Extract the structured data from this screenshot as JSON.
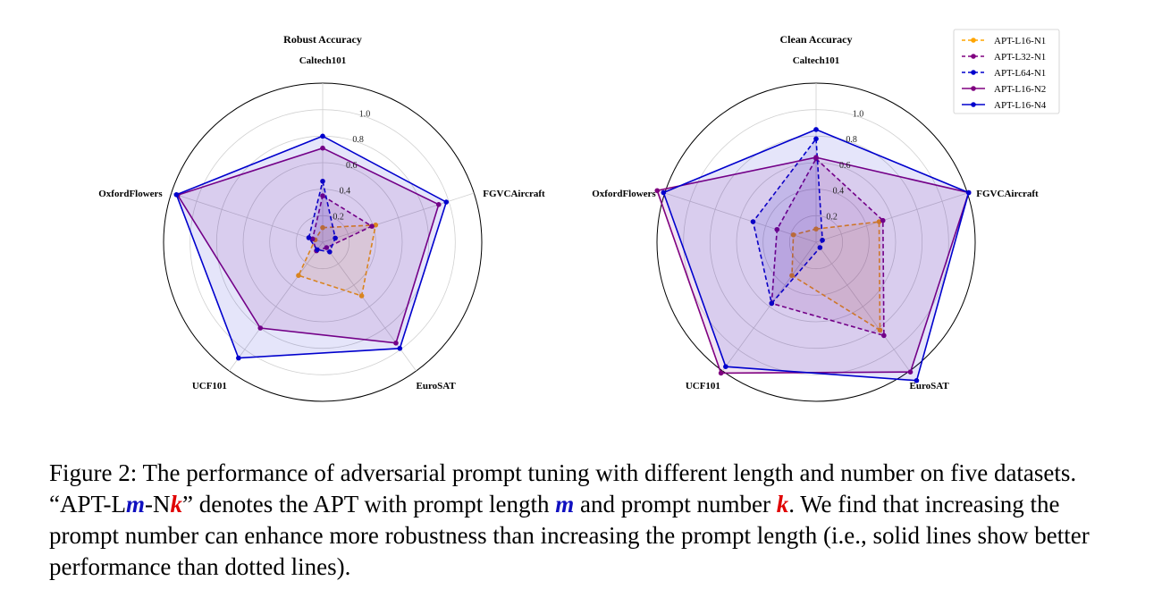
{
  "chart_data": [
    {
      "type": "radar",
      "title": "Robust Accuracy",
      "axes": [
        "Caltech101",
        "FGVCAircraft",
        "EuroSAT",
        "UCF101",
        "OxfordFlowers"
      ],
      "radial_ticks": [
        "0.2",
        "0.4",
        "0.6",
        "0.8",
        "1.0"
      ],
      "rlim": [
        0,
        1.2
      ],
      "series": [
        {
          "name": "APT-L16-N1",
          "values": [
            0.11,
            0.42,
            0.5,
            0.31,
            0.06
          ]
        },
        {
          "name": "APT-L32-N1",
          "values": [
            0.35,
            0.39,
            0.05,
            0.08,
            0.08
          ]
        },
        {
          "name": "APT-L64-N1",
          "values": [
            0.46,
            0.1,
            0.09,
            0.07,
            0.11
          ]
        },
        {
          "name": "APT-L16-N2",
          "values": [
            0.71,
            0.92,
            0.94,
            0.8,
            1.15
          ]
        },
        {
          "name": "APT-L16-N4",
          "values": [
            0.8,
            0.98,
            0.99,
            1.08,
            1.16
          ]
        }
      ]
    },
    {
      "type": "radar",
      "title": "Clean Accuracy",
      "axes": [
        "Caltech101",
        "FGVCAircraft",
        "EuroSAT",
        "UCF101",
        "OxfordFlowers"
      ],
      "radial_ticks": [
        "0.2",
        "0.4",
        "0.6",
        "0.8",
        "1.0"
      ],
      "rlim": [
        0,
        1.2
      ],
      "series": [
        {
          "name": "APT-L16-N1",
          "values": [
            0.1,
            0.5,
            0.82,
            0.31,
            0.18
          ]
        },
        {
          "name": "APT-L32-N1",
          "values": [
            0.63,
            0.53,
            0.87,
            0.57,
            0.31
          ]
        },
        {
          "name": "APT-L64-N1",
          "values": [
            0.78,
            0.05,
            0.05,
            0.57,
            0.5
          ]
        },
        {
          "name": "APT-L16-N2",
          "values": [
            0.64,
            1.21,
            1.21,
            1.22,
            1.26
          ]
        },
        {
          "name": "APT-L16-N4",
          "values": [
            0.85,
            1.21,
            1.29,
            1.16,
            1.21
          ]
        }
      ]
    }
  ],
  "styles": {
    "APT-L16-N1": {
      "color": "#ffa500",
      "dash": true
    },
    "APT-L32-N1": {
      "color": "#800080",
      "dash": true
    },
    "APT-L64-N1": {
      "color": "#0000cd",
      "dash": true
    },
    "APT-L16-N2": {
      "color": "#800080",
      "dash": false
    },
    "APT-L16-N4": {
      "color": "#0000cd",
      "dash": false
    }
  },
  "legend": [
    "APT-L16-N1",
    "APT-L32-N1",
    "APT-L64-N1",
    "APT-L16-N2",
    "APT-L16-N4"
  ],
  "caption": {
    "p1": "Figure 2: The performance of adversarial prompt tuning with different length and number on five datasets. “APT-L",
    "m1": "m",
    "p2": "-N",
    "k1": "k",
    "p3": "” denotes the APT with prompt length ",
    "m2": "m",
    "p4": " and prompt number ",
    "k2": "k",
    "p5": ". We find that increasing the prompt number can enhance more robustness than increasing the prompt length (i.e., solid lines show better performance than dotted lines)."
  }
}
